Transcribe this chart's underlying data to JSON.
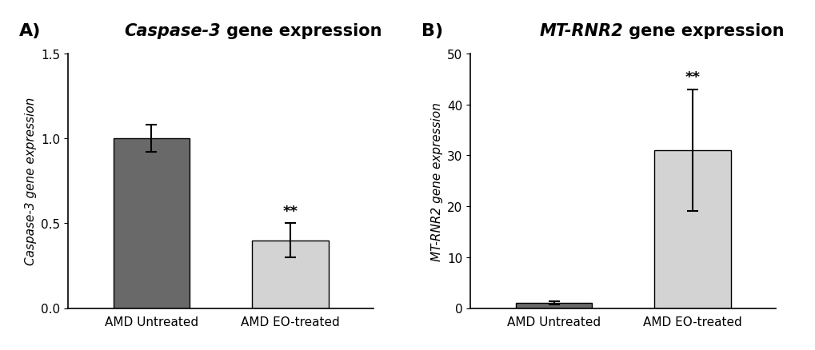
{
  "panel_A": {
    "title_italic": "Caspase-3",
    "title_normal": " gene expression",
    "panel_label": "A)",
    "categories": [
      "AMD Untreated",
      "AMD EO-treated"
    ],
    "values": [
      1.0,
      0.4
    ],
    "errors": [
      0.08,
      0.1
    ],
    "bar_colors": [
      "#696969",
      "#d3d3d3"
    ],
    "ylabel_italic": "Caspase-3",
    "ylabel_normal": " gene expression",
    "ylim": [
      0,
      1.5
    ],
    "yticks": [
      0.0,
      0.5,
      1.0,
      1.5
    ],
    "sig_label": "**",
    "sig_bar_index": 1
  },
  "panel_B": {
    "title_italic": "MT-RNR2",
    "title_normal": " gene expression",
    "panel_label": "B)",
    "categories": [
      "AMD Untreated",
      "AMD EO-treated"
    ],
    "values": [
      1.0,
      31.0
    ],
    "errors": [
      0.3,
      12.0
    ],
    "bar_colors": [
      "#696969",
      "#d3d3d3"
    ],
    "ylabel_italic": "MT-RNR2",
    "ylabel_normal": " gene expression",
    "ylim": [
      0,
      50
    ],
    "yticks": [
      0,
      10,
      20,
      30,
      40,
      50
    ],
    "sig_label": "**",
    "sig_bar_index": 1
  },
  "background_color": "#ffffff",
  "bar_width": 0.55,
  "title_fontsize": 15,
  "label_fontsize": 11,
  "tick_fontsize": 11,
  "panel_label_fontsize": 16
}
